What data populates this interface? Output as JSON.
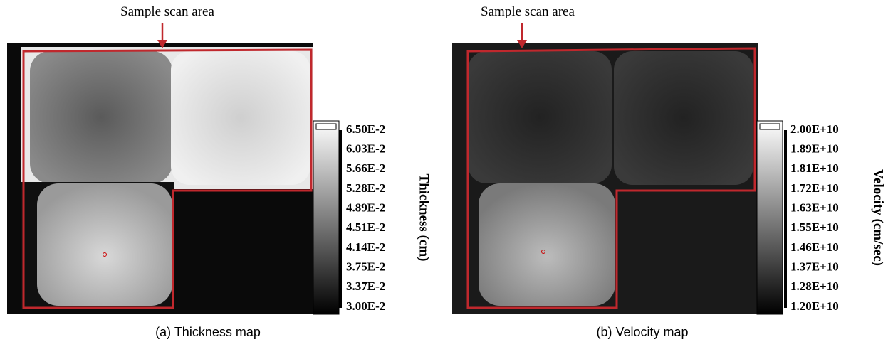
{
  "panels": [
    {
      "annotation": "Sample scan area",
      "colorbar_labels": [
        "6.50E-2",
        "6.03E-2",
        "5.66E-2",
        "5.28E-2",
        "4.89E-2",
        "4.51E-2",
        "4.14E-2",
        "3.75E-2",
        "3.37E-2",
        "3.00E-2"
      ],
      "colorbar_title": "Thickness (cm)",
      "caption": "(a) Thickness map"
    },
    {
      "annotation": "Sample scan area",
      "colorbar_labels": [
        "2.00E+10",
        "1.89E+10",
        "1.81E+10",
        "1.72E+10",
        "1.63E+10",
        "1.55E+10",
        "1.46E+10",
        "1.37E+10",
        "1.28E+10",
        "1.20E+10"
      ],
      "colorbar_title": "Velocity (cm/sec)",
      "caption": "(b) Velocity map"
    }
  ]
}
